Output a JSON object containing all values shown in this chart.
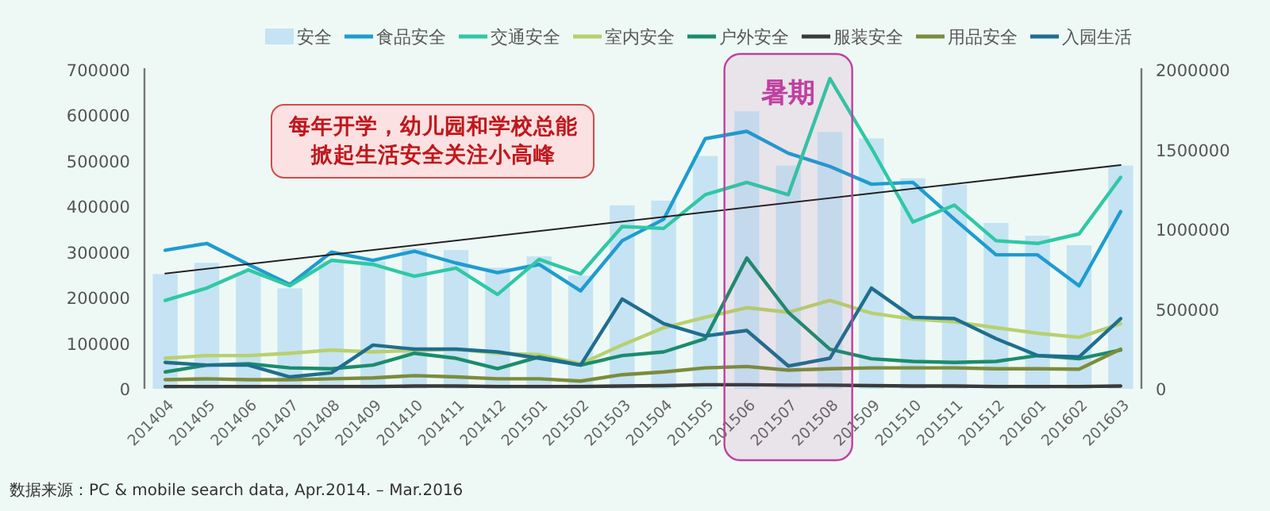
{
  "chart_data": {
    "type": "bar",
    "categories": [
      "201404",
      "201405",
      "201406",
      "201407",
      "201408",
      "201409",
      "201410",
      "201411",
      "201412",
      "201501",
      "201502",
      "201503",
      "201504",
      "201505",
      "201506",
      "201507",
      "201508",
      "201509",
      "201510",
      "201511",
      "201512",
      "201601",
      "201602",
      "201603"
    ],
    "series": [
      {
        "name": "安全",
        "axis": "y2",
        "color": "#c5e3f2",
        "values": [
          720000,
          790000,
          730000,
          630000,
          800000,
          800000,
          880000,
          870000,
          760000,
          830000,
          710000,
          1150000,
          1180000,
          1460000,
          1740000,
          1400000,
          1610000,
          1570000,
          1320000,
          1280000,
          1040000,
          960000,
          900000,
          1400000
        ]
      },
      {
        "name": "食品安全",
        "type": "line",
        "color": "#1e9cd0",
        "values": [
          304000,
          319000,
          273000,
          229000,
          300000,
          282000,
          302000,
          276000,
          255000,
          273000,
          215000,
          325000,
          372000,
          549000,
          565000,
          517000,
          488000,
          449000,
          453000,
          372000,
          294000,
          294000,
          226000,
          389000
        ]
      },
      {
        "name": "交通安全",
        "type": "line",
        "color": "#2fc8a5",
        "values": [
          194000,
          221000,
          261000,
          226000,
          282000,
          273000,
          247000,
          265000,
          207000,
          284000,
          252000,
          356000,
          352000,
          426000,
          453000,
          426000,
          681000,
          528000,
          366000,
          403000,
          325000,
          319000,
          340000,
          464000
        ]
      },
      {
        "name": "室内安全",
        "type": "line",
        "color": "#b8d06e",
        "values": [
          67000,
          73000,
          73000,
          78000,
          85000,
          81000,
          84000,
          87000,
          78000,
          75000,
          55000,
          96000,
          134000,
          157000,
          178000,
          168000,
          194000,
          166000,
          153000,
          147000,
          134000,
          122000,
          113000,
          143000
        ]
      },
      {
        "name": "户外安全",
        "type": "line",
        "color": "#1b8c6c",
        "values": [
          37000,
          52000,
          55000,
          46000,
          44000,
          52000,
          78000,
          67000,
          44000,
          70000,
          52000,
          73000,
          81000,
          110000,
          287000,
          168000,
          87000,
          66000,
          60000,
          58000,
          60000,
          73000,
          66000,
          85000
        ]
      },
      {
        "name": "服装安全",
        "type": "line",
        "color": "#3a3a3a",
        "values": [
          5000,
          5000,
          5000,
          5000,
          5000,
          5000,
          6000,
          6000,
          5000,
          5000,
          5000,
          6000,
          7000,
          9000,
          9000,
          8000,
          8000,
          7000,
          6000,
          6000,
          5000,
          5000,
          5000,
          6000
        ]
      },
      {
        "name": "用品安全",
        "type": "line",
        "color": "#7c8c3c",
        "values": [
          20000,
          22000,
          20000,
          20000,
          22000,
          24000,
          29000,
          26000,
          22000,
          22000,
          17000,
          31000,
          37000,
          46000,
          49000,
          41000,
          44000,
          46000,
          46000,
          46000,
          44000,
          44000,
          43000,
          87000
        ]
      },
      {
        "name": "入园生活",
        "type": "line",
        "color": "#1f6e8e",
        "values": [
          58000,
          52000,
          52000,
          26000,
          35000,
          96000,
          87000,
          87000,
          81000,
          67000,
          52000,
          197000,
          143000,
          116000,
          128000,
          50000,
          67000,
          221000,
          157000,
          154000,
          110000,
          73000,
          70000,
          154000
        ]
      },
      {
        "type": "line",
        "color": "#222222",
        "x": [
          "201404",
          "201603"
        ],
        "values": [
          253000,
          491000
        ]
      }
    ],
    "ylim": [
      0,
      700000
    ],
    "yticks": [
      0,
      100000,
      200000,
      300000,
      400000,
      500000,
      600000,
      700000
    ],
    "y2lim": [
      0,
      2000000
    ],
    "y2ticks": [
      0,
      500000,
      1000000,
      1500000,
      2000000
    ],
    "legend": "top",
    "bands": [
      {
        "axis": "x",
        "from": "201506",
        "to": "201508",
        "label": "暑期",
        "color": "#c040a0"
      }
    ],
    "annotations": [
      "每年开学，幼儿园和学校总能掀起生活安全关注小高峰",
      "数据来源：PC & mobile search data, Apr.2014. – Mar.2016"
    ]
  }
}
